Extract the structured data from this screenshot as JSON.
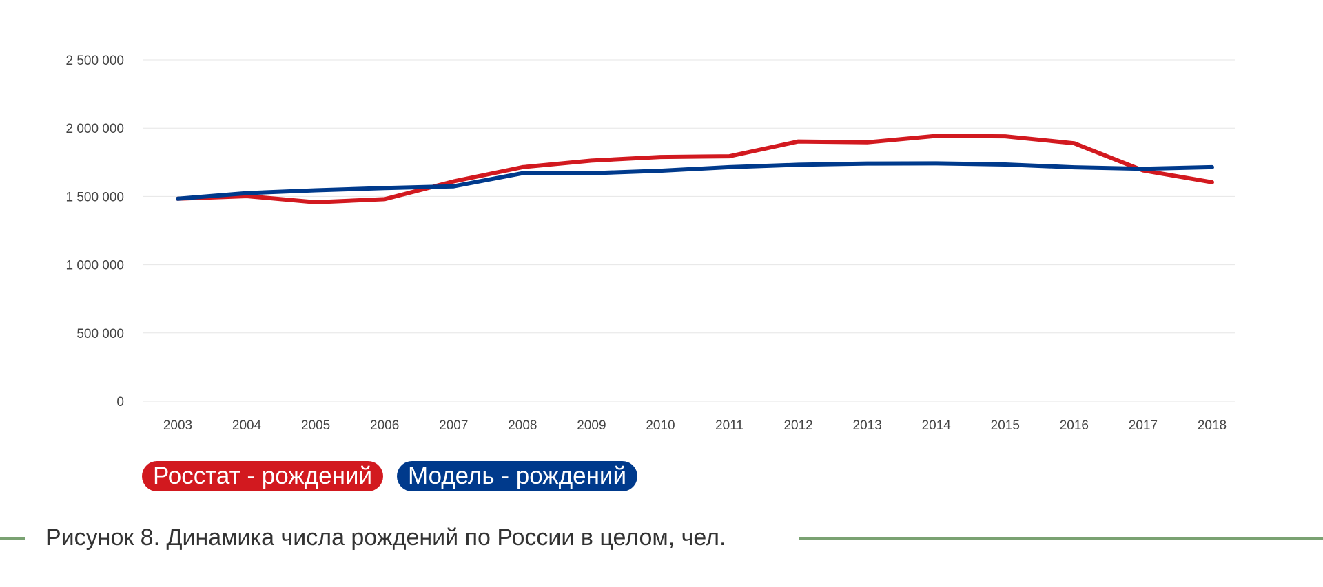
{
  "chart_data": {
    "type": "line",
    "title": "",
    "xlabel": "",
    "ylabel": "",
    "x": [
      "2003",
      "2004",
      "2005",
      "2006",
      "2007",
      "2008",
      "2009",
      "2010",
      "2011",
      "2012",
      "2013",
      "2014",
      "2015",
      "2016",
      "2017",
      "2018"
    ],
    "series": [
      {
        "name": "Росстат - рождений",
        "color": "#d2191f",
        "values": [
          1483000,
          1502000,
          1457000,
          1480000,
          1610000,
          1714000,
          1762000,
          1789000,
          1794000,
          1902000,
          1896000,
          1943000,
          1940000,
          1889000,
          1690000,
          1604000
        ]
      },
      {
        "name": "Модель - рождений",
        "color": "#003a8c",
        "values": [
          1483000,
          1524000,
          1545000,
          1561000,
          1574000,
          1670000,
          1670000,
          1688000,
          1714000,
          1732000,
          1741000,
          1742000,
          1734000,
          1713000,
          1702000,
          1714000
        ]
      }
    ],
    "ylim": [
      0,
      2500000
    ],
    "y_ticks": [
      "0",
      "500 000",
      "1 000 000",
      "1 500 000",
      "2 000 000",
      "2 500 000"
    ],
    "y_tick_values": [
      0,
      500000,
      1000000,
      1500000,
      2000000,
      2500000
    ],
    "grid": true,
    "legend_position": "bottom-left"
  },
  "caption": {
    "text": "Рисунок 8. Динамика числа рождений по России в целом, чел.",
    "line_color": "#7aa272"
  }
}
